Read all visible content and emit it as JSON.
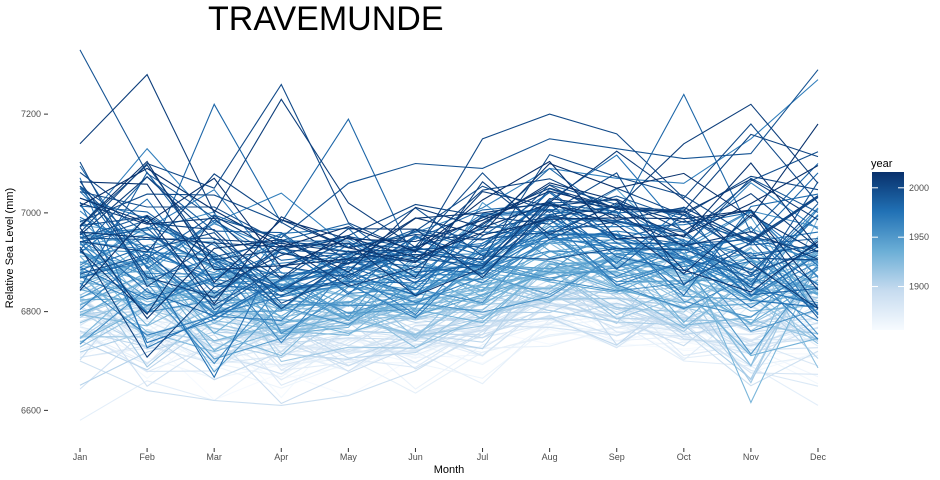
{
  "chart_data": {
    "type": "line",
    "title": "TRAVEMUNDE",
    "xlabel": "Month",
    "ylabel": "Relative Sea Level (mm)",
    "categories": [
      "Jan",
      "Feb",
      "Mar",
      "Apr",
      "May",
      "Jun",
      "Jul",
      "Aug",
      "Sep",
      "Oct",
      "Nov",
      "Dec"
    ],
    "ylim": [
      6540,
      7340
    ],
    "yticks": [
      6600,
      6800,
      7000,
      7200
    ],
    "grid": false,
    "legend": {
      "title": "year",
      "placement": "right",
      "type": "continuous-colorbar",
      "range": [
        1856,
        2016
      ],
      "ticks": [
        1900,
        1950,
        2000
      ],
      "colors": [
        "#f7fbff",
        "#08306b"
      ]
    },
    "series_note_years": [
      1856,
      2016
    ],
    "series_profile": {
      "base_by_year": [
        [
          1856,
          6730
        ],
        [
          1900,
          6780
        ],
        [
          1950,
          6880
        ],
        [
          2016,
          6970
        ]
      ],
      "seasonal": [
        20,
        0,
        -10,
        -40,
        -30,
        -15,
        0,
        50,
        45,
        20,
        0,
        0
      ]
    },
    "highlight_series": [
      {
        "year": 1994,
        "values": [
          7330,
          7080,
          6990,
          6950,
          7060,
          7100,
          7090,
          7150,
          7130,
          7110,
          7120,
          7290
        ]
      },
      {
        "year": 2007,
        "values": [
          7140,
          7280,
          7000,
          7230,
          7020,
          6930,
          6990,
          7050,
          7010,
          7140,
          7220,
          7060
        ]
      },
      {
        "year": 1983,
        "values": [
          7050,
          6900,
          7220,
          6980,
          7190,
          6900,
          6970,
          7090,
          6990,
          7240,
          6960,
          7100
        ]
      },
      {
        "year": 2000,
        "values": [
          6960,
          7100,
          7050,
          7260,
          6980,
          6920,
          7150,
          7200,
          7160,
          7030,
          7180,
          7020
        ]
      },
      {
        "year": 1967,
        "values": [
          6970,
          7130,
          6980,
          7040,
          6930,
          6960,
          7010,
          7090,
          7070,
          7060,
          7150,
          7270
        ]
      },
      {
        "year": 2015,
        "values": [
          7030,
          6980,
          7070,
          6890,
          6950,
          6910,
          6960,
          7100,
          7050,
          7080,
          6990,
          7180
        ]
      },
      {
        "year": 1872,
        "values": [
          6580,
          6660,
          6620,
          6720,
          6680,
          6750,
          6710,
          6820,
          6780,
          6700,
          6690,
          6610
        ]
      },
      {
        "year": 1890,
        "values": [
          6700,
          6640,
          6620,
          6610,
          6630,
          6680,
          6760,
          6830,
          6800,
          6760,
          6650,
          6720
        ]
      }
    ]
  }
}
